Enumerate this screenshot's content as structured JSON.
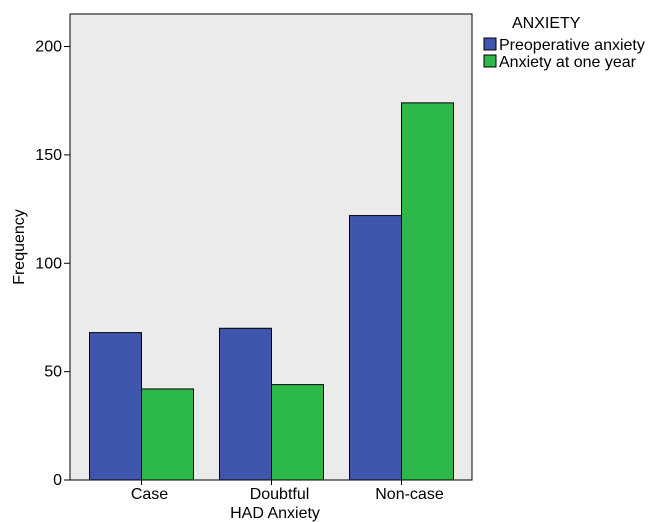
{
  "chart_data": {
    "type": "bar",
    "categories": [
      "Case",
      "Doubtful",
      "Non-case"
    ],
    "series": [
      {
        "name": "Preoperative anxiety",
        "values": [
          68,
          70,
          122
        ],
        "color": "#3e56ac"
      },
      {
        "name": "Anxiety at one year",
        "values": [
          42,
          44,
          174
        ],
        "color": "#2db84a"
      }
    ],
    "xlabel": "HAD Anxiety",
    "ylabel": "Frequency",
    "ylim": [
      0,
      215
    ],
    "yticks": [
      0,
      50,
      100,
      150,
      200
    ],
    "legend_title": "ANXIETY",
    "legend_position": "top-right",
    "plot_background": "#ebebeb",
    "grid": false
  }
}
